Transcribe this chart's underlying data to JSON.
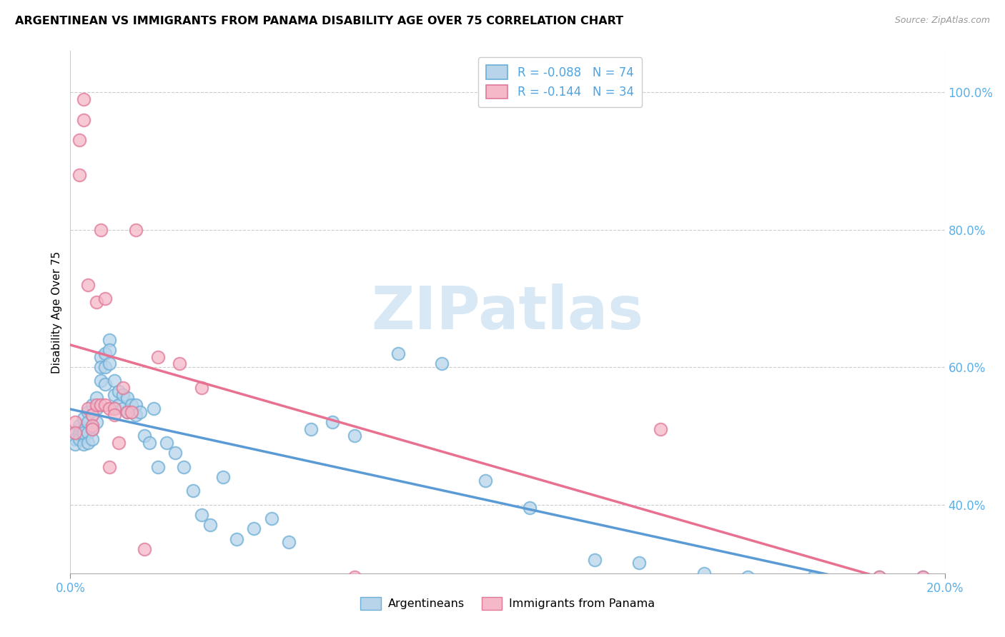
{
  "title": "ARGENTINEAN VS IMMIGRANTS FROM PANAMA DISABILITY AGE OVER 75 CORRELATION CHART",
  "source": "Source: ZipAtlas.com",
  "ylabel": "Disability Age Over 75",
  "legend_label1": "Argentineans",
  "legend_label2": "Immigrants from Panama",
  "r1": "-0.088",
  "n1": "74",
  "r2": "-0.144",
  "n2": "34",
  "blue_face": "#b8d4ea",
  "blue_edge": "#6baed6",
  "pink_face": "#f5b8c8",
  "pink_edge": "#e07898",
  "blue_line": "#5b9bd5",
  "pink_line": "#e87090",
  "watermark_color": "#c8dff0",
  "xlim": [
    0.0,
    0.2
  ],
  "ylim": [
    0.3,
    1.06
  ],
  "yticks": [
    0.4,
    0.6,
    0.8,
    1.0
  ],
  "xticks": [
    0.0,
    0.2
  ],
  "blue_x": [
    0.001,
    0.001,
    0.001,
    0.002,
    0.002,
    0.002,
    0.002,
    0.003,
    0.003,
    0.003,
    0.003,
    0.003,
    0.004,
    0.004,
    0.004,
    0.004,
    0.005,
    0.005,
    0.005,
    0.005,
    0.006,
    0.006,
    0.006,
    0.007,
    0.007,
    0.007,
    0.008,
    0.008,
    0.008,
    0.009,
    0.009,
    0.009,
    0.01,
    0.01,
    0.01,
    0.011,
    0.011,
    0.012,
    0.012,
    0.013,
    0.013,
    0.014,
    0.015,
    0.015,
    0.016,
    0.017,
    0.018,
    0.019,
    0.02,
    0.022,
    0.024,
    0.026,
    0.028,
    0.03,
    0.032,
    0.035,
    0.038,
    0.042,
    0.046,
    0.05,
    0.055,
    0.06,
    0.065,
    0.075,
    0.085,
    0.095,
    0.105,
    0.12,
    0.13,
    0.145,
    0.155,
    0.17,
    0.185,
    0.195
  ],
  "blue_y": [
    0.505,
    0.495,
    0.488,
    0.502,
    0.51,
    0.495,
    0.515,
    0.5,
    0.51,
    0.488,
    0.525,
    0.505,
    0.535,
    0.52,
    0.505,
    0.49,
    0.545,
    0.53,
    0.51,
    0.495,
    0.555,
    0.54,
    0.52,
    0.615,
    0.6,
    0.58,
    0.62,
    0.6,
    0.575,
    0.64,
    0.625,
    0.605,
    0.58,
    0.56,
    0.54,
    0.565,
    0.545,
    0.56,
    0.54,
    0.555,
    0.535,
    0.545,
    0.545,
    0.53,
    0.535,
    0.5,
    0.49,
    0.54,
    0.455,
    0.49,
    0.475,
    0.455,
    0.42,
    0.385,
    0.37,
    0.44,
    0.35,
    0.365,
    0.38,
    0.345,
    0.51,
    0.52,
    0.5,
    0.62,
    0.605,
    0.435,
    0.395,
    0.32,
    0.315,
    0.3,
    0.295,
    0.295,
    0.295,
    0.295
  ],
  "pink_x": [
    0.001,
    0.001,
    0.002,
    0.002,
    0.003,
    0.003,
    0.004,
    0.004,
    0.005,
    0.005,
    0.005,
    0.006,
    0.006,
    0.007,
    0.007,
    0.008,
    0.008,
    0.009,
    0.009,
    0.01,
    0.01,
    0.011,
    0.012,
    0.013,
    0.014,
    0.015,
    0.017,
    0.02,
    0.025,
    0.03,
    0.065,
    0.135,
    0.185,
    0.195
  ],
  "pink_y": [
    0.52,
    0.505,
    0.93,
    0.88,
    0.99,
    0.96,
    0.72,
    0.54,
    0.53,
    0.515,
    0.51,
    0.545,
    0.695,
    0.545,
    0.8,
    0.7,
    0.545,
    0.54,
    0.455,
    0.54,
    0.53,
    0.49,
    0.57,
    0.535,
    0.535,
    0.8,
    0.335,
    0.615,
    0.605,
    0.57,
    0.295,
    0.51,
    0.295,
    0.295
  ]
}
